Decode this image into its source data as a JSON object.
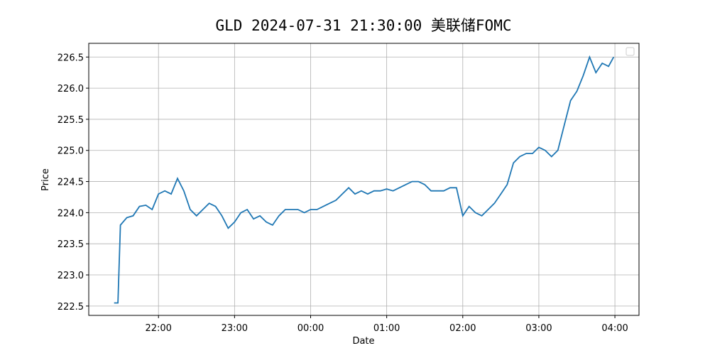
{
  "chart_data": {
    "type": "line",
    "title": "GLD 2024-07-31 21:30:00 美联储FOMC",
    "x_label": "Date",
    "y_label": "Price",
    "grid": true,
    "xlim": [
      "21:05",
      "04:19"
    ],
    "xticks": [
      "22:00",
      "23:00",
      "00:00",
      "01:00",
      "02:00",
      "03:00",
      "04:00"
    ],
    "ylim": [
      222.35,
      226.72
    ],
    "yticks": [
      222.5,
      {
        "value": 223,
        "label": "223.0"
      },
      223.5,
      {
        "value": 224,
        "label": "224.0"
      },
      224.5,
      {
        "value": 225,
        "label": "225.0"
      },
      225.5,
      {
        "value": 226,
        "label": "226.0"
      },
      226.5
    ],
    "series": [
      {
        "color": "#1f77b4",
        "x": [
          "21:25",
          "21:28",
          "21:30",
          "21:35",
          "21:40",
          "21:45",
          "21:50",
          "21:55",
          "22:00",
          "22:05",
          "22:10",
          "22:15",
          "22:20",
          "22:25",
          "22:30",
          "22:35",
          "22:40",
          "22:45",
          "22:50",
          "22:55",
          "23:00",
          "23:05",
          "23:10",
          "23:15",
          "23:20",
          "23:25",
          "23:30",
          "23:35",
          "23:40",
          "23:45",
          "23:50",
          "23:55",
          "00:00",
          "00:05",
          "00:10",
          "00:15",
          "00:20",
          "00:25",
          "00:30",
          "00:35",
          "00:40",
          "00:45",
          "00:50",
          "00:55",
          "01:00",
          "01:05",
          "01:10",
          "01:15",
          "01:20",
          "01:25",
          "01:30",
          "01:35",
          "01:40",
          "01:45",
          "01:50",
          "01:55",
          "02:00",
          "02:05",
          "02:10",
          "02:15",
          "02:20",
          "02:25",
          "02:30",
          "02:35",
          "02:40",
          "02:45",
          "02:50",
          "02:55",
          "03:00",
          "03:05",
          "03:10",
          "03:15",
          "03:20",
          "03:25",
          "03:30",
          "03:35",
          "03:40",
          "03:45",
          "03:50",
          "03:55",
          "03:59"
        ],
        "values": [
          222.55,
          222.55,
          223.8,
          223.92,
          223.95,
          224.1,
          224.12,
          224.05,
          224.3,
          224.35,
          224.3,
          224.55,
          224.35,
          224.05,
          223.95,
          224.05,
          224.15,
          224.1,
          223.95,
          223.75,
          223.85,
          224.0,
          224.05,
          223.9,
          223.95,
          223.85,
          223.8,
          223.95,
          224.05,
          224.05,
          224.05,
          224.0,
          224.05,
          224.05,
          224.1,
          224.15,
          224.2,
          224.3,
          224.4,
          224.3,
          224.35,
          224.3,
          224.35,
          224.35,
          224.38,
          224.35,
          224.4,
          224.45,
          224.5,
          224.5,
          224.45,
          224.35,
          224.35,
          224.35,
          224.4,
          224.4,
          223.95,
          224.1,
          224.0,
          223.95,
          224.05,
          224.15,
          224.3,
          224.45,
          224.8,
          224.9,
          224.95,
          224.95,
          225.05,
          225.0,
          224.9,
          225.0,
          225.4,
          225.8,
          225.95,
          226.2,
          226.5,
          226.25,
          226.4,
          226.35,
          226.5
        ]
      }
    ]
  }
}
